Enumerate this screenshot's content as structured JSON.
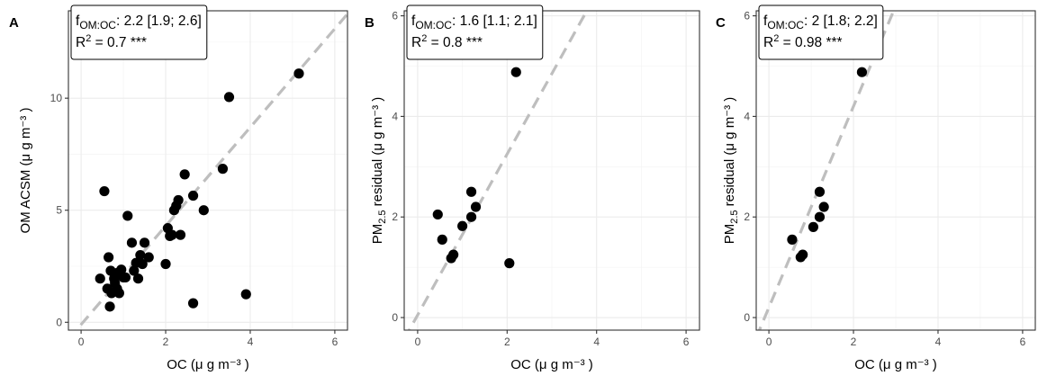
{
  "chart_data": [
    {
      "type": "scatter",
      "panel": "A",
      "xlabel": "OC (μ g m⁻³ )",
      "ylabel": "OM ACSM (μ g m⁻³ )",
      "xlim": [
        -0.3,
        6.3
      ],
      "ylim": [
        -0.35,
        13.9
      ],
      "xticks": [
        0,
        2,
        4,
        6
      ],
      "yticks": [
        0,
        5,
        10
      ],
      "grid": true,
      "annotation": {
        "f_prefix": "f",
        "f_sub": "OM:OC",
        "f_value": ": 2.2 [1.9; 2.6]",
        "r2_prefix": "R",
        "r2_sup": "2",
        "r2_value": " = 0.7 ***"
      },
      "fit": {
        "slope": 2.2,
        "intercept": -0.1
      },
      "points": [
        [
          0.45,
          1.95
        ],
        [
          0.55,
          5.85
        ],
        [
          0.62,
          1.5
        ],
        [
          0.65,
          2.9
        ],
        [
          0.68,
          0.7
        ],
        [
          0.7,
          2.3
        ],
        [
          0.72,
          1.3
        ],
        [
          0.78,
          1.95
        ],
        [
          0.8,
          1.75
        ],
        [
          0.85,
          2.2
        ],
        [
          0.9,
          1.3
        ],
        [
          0.95,
          2.35
        ],
        [
          1.0,
          2.0
        ],
        [
          1.05,
          2.0
        ],
        [
          1.1,
          4.75
        ],
        [
          1.2,
          3.55
        ],
        [
          1.25,
          2.3
        ],
        [
          1.3,
          2.65
        ],
        [
          1.35,
          1.95
        ],
        [
          1.4,
          3.0
        ],
        [
          1.45,
          2.6
        ],
        [
          1.5,
          3.55
        ],
        [
          1.6,
          2.9
        ],
        [
          2.0,
          2.6
        ],
        [
          2.05,
          4.2
        ],
        [
          2.1,
          3.85
        ],
        [
          2.15,
          3.9
        ],
        [
          2.2,
          5.0
        ],
        [
          2.25,
          5.2
        ],
        [
          2.3,
          5.45
        ],
        [
          2.35,
          3.9
        ],
        [
          2.45,
          6.6
        ],
        [
          2.65,
          5.65
        ],
        [
          2.65,
          0.85
        ],
        [
          2.9,
          5.0
        ],
        [
          3.35,
          6.85
        ],
        [
          3.5,
          10.05
        ],
        [
          3.9,
          1.25
        ],
        [
          5.15,
          11.1
        ],
        [
          0.85,
          1.5
        ]
      ]
    },
    {
      "type": "scatter",
      "panel": "B",
      "xlabel": "OC (μ g m⁻³ )",
      "ylabel_main": "PM",
      "ylabel_sub": "2.5",
      "ylabel_rest": " residual (μ g m⁻³ )",
      "xlim": [
        -0.3,
        6.3
      ],
      "ylim": [
        -0.25,
        6.1
      ],
      "xticks": [
        0,
        2,
        4,
        6
      ],
      "yticks": [
        0,
        2,
        4,
        6
      ],
      "grid": true,
      "annotation": {
        "f_prefix": "f",
        "f_sub": "OM:OC",
        "f_value": ": 1.6 [1.1; 2.1]",
        "r2_prefix": "R",
        "r2_sup": "2",
        "r2_value": " = 0.8 ***"
      },
      "fit": {
        "slope": 1.6,
        "intercept": 0.05
      },
      "points": [
        [
          0.45,
          2.05
        ],
        [
          0.55,
          1.55
        ],
        [
          0.75,
          1.18
        ],
        [
          0.8,
          1.25
        ],
        [
          1.0,
          1.82
        ],
        [
          1.2,
          2.5
        ],
        [
          1.2,
          2.0
        ],
        [
          1.3,
          2.2
        ],
        [
          2.05,
          1.08
        ],
        [
          2.2,
          4.88
        ]
      ]
    },
    {
      "type": "scatter",
      "panel": "C",
      "xlabel": "OC (μ g m⁻³ )",
      "ylabel_main": "PM",
      "ylabel_sub": "2.5",
      "ylabel_rest": " residual (μ g m⁻³ )",
      "xlim": [
        -0.3,
        6.3
      ],
      "ylim": [
        -0.25,
        6.1
      ],
      "xticks": [
        0,
        2,
        4,
        6
      ],
      "yticks": [
        0,
        2,
        4,
        6
      ],
      "grid": true,
      "annotation": {
        "f_prefix": "f",
        "f_sub": "OM:OC",
        "f_value": ": 2 [1.8; 2.2]",
        "r2_prefix": "R",
        "r2_sup": "2",
        "r2_value": " = 0.98 ***"
      },
      "fit": {
        "slope": 2.0,
        "intercept": 0.2
      },
      "points": [
        [
          0.55,
          1.55
        ],
        [
          0.75,
          1.2
        ],
        [
          0.8,
          1.25
        ],
        [
          1.05,
          1.8
        ],
        [
          1.2,
          2.5
        ],
        [
          1.2,
          2.0
        ],
        [
          1.3,
          2.2
        ],
        [
          2.2,
          4.88
        ]
      ]
    }
  ]
}
